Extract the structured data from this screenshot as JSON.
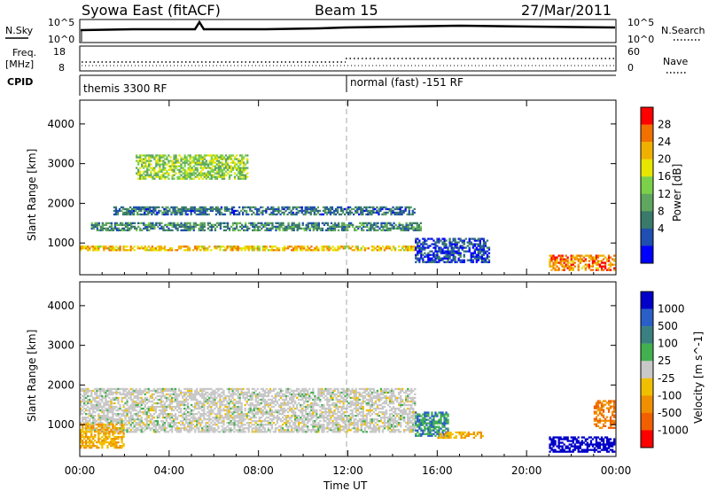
{
  "header": {
    "radar": "Syowa East (fitACF)",
    "beam": "Beam 15",
    "date": "27/Mar/2011"
  },
  "strip_labels": {
    "nsky": "N.Sky",
    "nsky_ticks": [
      "10^5",
      "10^0"
    ],
    "nsearch": "N.Search",
    "nsearch_ticks": [
      "10^5",
      "10^0"
    ],
    "freq": "Freq.",
    "freq_unit": "[MHz]",
    "freq_ticks": [
      "18",
      "8"
    ],
    "nave": "Nave",
    "nave_ticks": [
      "60",
      "0"
    ],
    "cpid": "CPID"
  },
  "cpid_segments": [
    {
      "label": "themis 3300 RF",
      "start_hour": 0
    },
    {
      "label": "normal (fast) -151 RF",
      "start_hour": 12
    }
  ],
  "colors": {
    "power": [
      "#0000ff",
      "#1f4fb0",
      "#3a7a6a",
      "#5fa65f",
      "#7bd04a",
      "#e6e600",
      "#f0b000",
      "#f07000",
      "#ff0000"
    ],
    "velocity_pos": [
      "#0000c8",
      "#2a5fc8",
      "#3a8080",
      "#42b050"
    ],
    "velocity_zero": "#c8c8c8",
    "velocity_neg": [
      "#f0c000",
      "#f09000",
      "#f06000",
      "#ff0000"
    ]
  },
  "chart_data": [
    {
      "type": "heatmap",
      "panel": "power",
      "ylabel": "Slant Range [km]",
      "yticks": [
        "1000",
        "2000",
        "3000",
        "4000"
      ],
      "ylim": [
        200,
        4600
      ],
      "xlim": [
        0,
        24
      ],
      "colorbar_label": "Power [dB]",
      "colorbar_ticks": [
        "28",
        "24",
        "20",
        "16",
        "12",
        "8",
        "4"
      ],
      "colorbar_range": [
        0,
        32
      ],
      "bands": [
        {
          "t0": 0.0,
          "t1": 15.0,
          "r0": 800,
          "r1": 900,
          "z": 22
        },
        {
          "t0": 0.5,
          "t1": 15.3,
          "r0": 1300,
          "r1": 1500,
          "z": 10
        },
        {
          "t0": 1.5,
          "t1": 15.0,
          "r0": 1700,
          "r1": 1900,
          "z": 8
        },
        {
          "t0": 2.5,
          "t1": 7.5,
          "r0": 2600,
          "r1": 3200,
          "z": 16
        },
        {
          "t0": 15.0,
          "t1": 18.3,
          "r0": 500,
          "r1": 1100,
          "z": 5
        },
        {
          "t0": 21.0,
          "t1": 23.9,
          "r0": 300,
          "r1": 700,
          "z": 26
        }
      ]
    },
    {
      "type": "heatmap",
      "panel": "velocity",
      "ylabel": "Slant Range [km]",
      "yticks": [
        "1000",
        "2000",
        "3000",
        "4000"
      ],
      "ylim": [
        200,
        4600
      ],
      "xlim": [
        0,
        24
      ],
      "xlabel": "Time UT",
      "xticks": [
        "00:00",
        "04:00",
        "08:00",
        "12:00",
        "16:00",
        "20:00",
        "00:00"
      ],
      "colorbar_label": "Velocity [m s^-1]",
      "colorbar_ticks": [
        "1000",
        "500",
        "100",
        "25",
        "-25",
        "-100",
        "-500",
        "-1000"
      ],
      "bands": [
        {
          "t0": 0.0,
          "t1": 15.0,
          "r0": 800,
          "r1": 1900,
          "v": 0
        },
        {
          "t0": 15.0,
          "t1": 16.5,
          "r0": 700,
          "r1": 1300,
          "v": 100
        },
        {
          "t0": 16.0,
          "t1": 18.0,
          "r0": 650,
          "r1": 800,
          "v": -100
        },
        {
          "t0": 0.0,
          "t1": 2.0,
          "r0": 400,
          "r1": 1000,
          "v": -100
        },
        {
          "t0": 21.0,
          "t1": 23.9,
          "r0": 300,
          "r1": 700,
          "v": 1000
        },
        {
          "t0": 23.0,
          "t1": 23.9,
          "r0": 900,
          "r1": 1600,
          "v": -500
        }
      ]
    }
  ]
}
